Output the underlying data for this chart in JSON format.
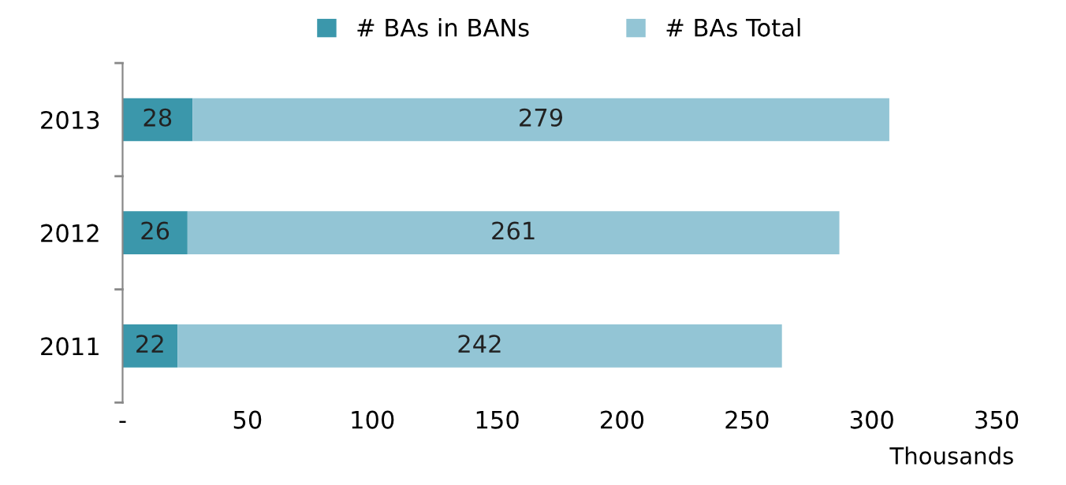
{
  "chart_data": {
    "type": "bar",
    "orientation": "horizontal",
    "stacked": true,
    "categories": [
      "2013",
      "2012",
      "2011"
    ],
    "series": [
      {
        "name": "# BAs in BANs",
        "color": "#3b97ab",
        "values": [
          28,
          26,
          22
        ]
      },
      {
        "name": "# BAs Total",
        "color": "#93c5d5",
        "values": [
          279,
          261,
          242
        ]
      }
    ],
    "xlim": [
      0,
      350
    ],
    "xticks": [
      {
        "value": 0,
        "label": "-"
      },
      50,
      100,
      150,
      200,
      250,
      300,
      350
    ],
    "xlabel": "Thousands",
    "data_labels": true,
    "legend": "top",
    "grid": false
  }
}
